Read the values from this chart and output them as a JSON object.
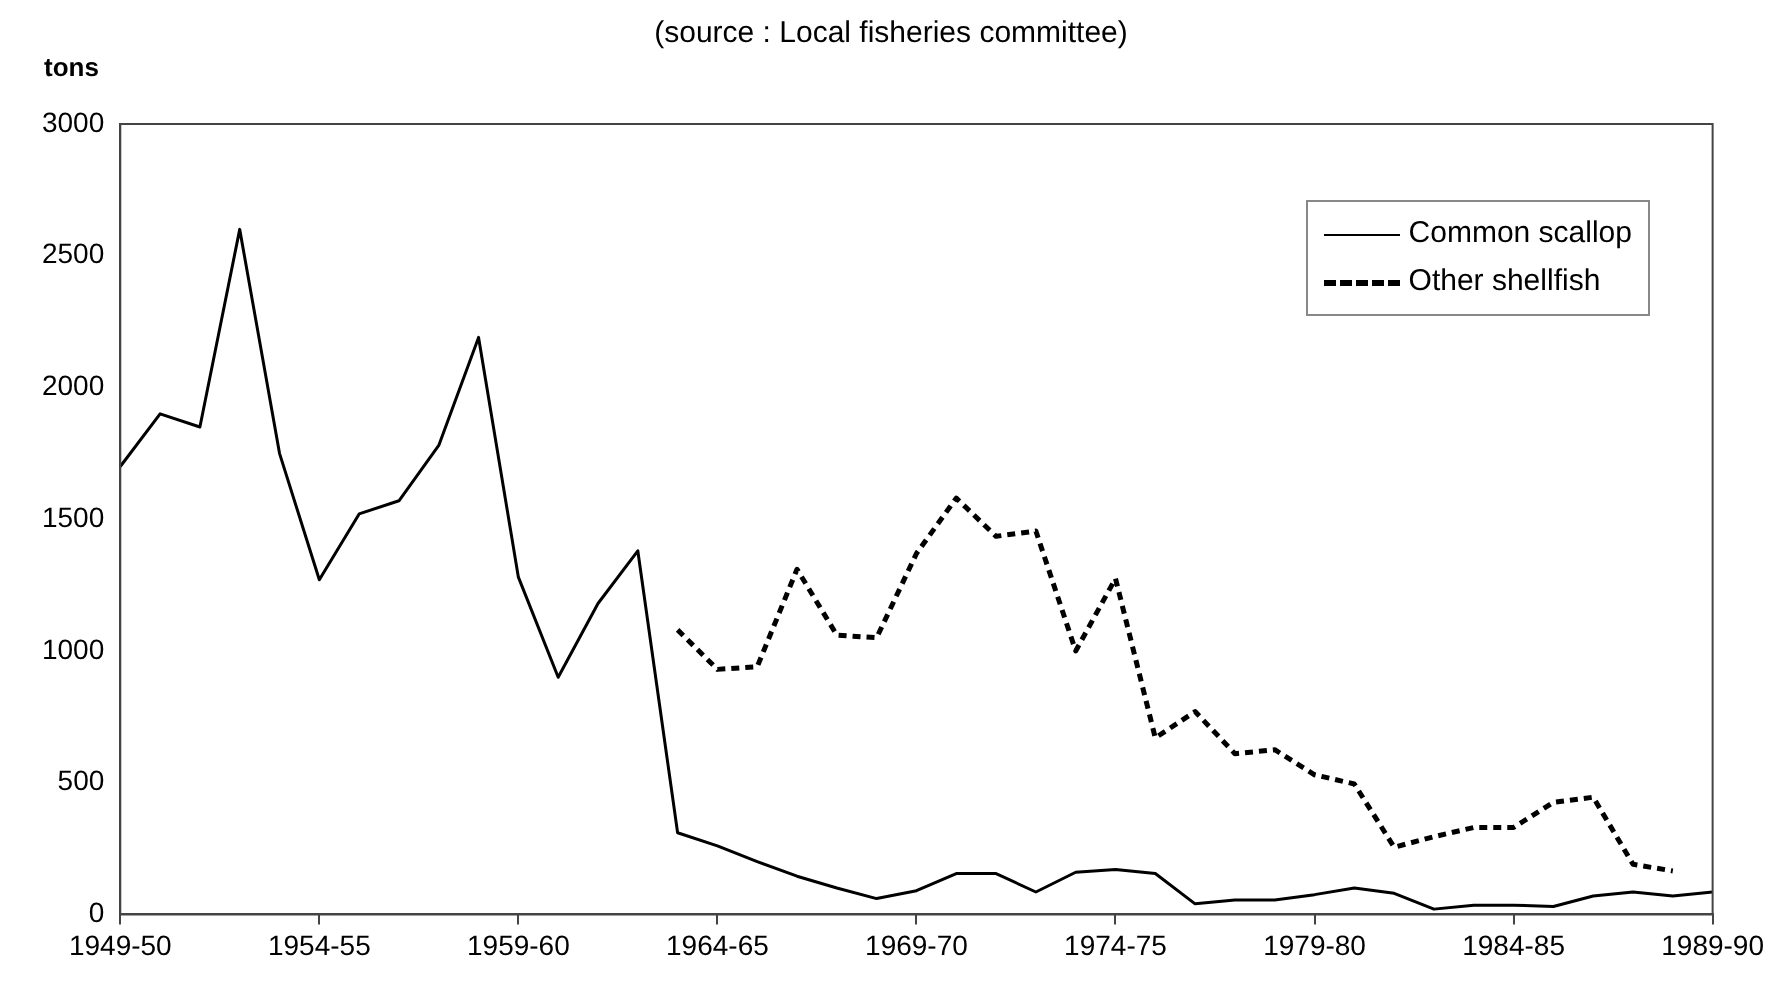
{
  "chart_data": {
    "type": "line",
    "subtitle": "(source : Local fisheries committee)",
    "ylabel": "tons",
    "categories": [
      "1949-50",
      null,
      null,
      null,
      null,
      "1954-55",
      null,
      null,
      null,
      null,
      "1959-60",
      null,
      null,
      null,
      null,
      "1964-65",
      null,
      null,
      null,
      null,
      "1969-70",
      null,
      null,
      null,
      null,
      "1974-75",
      null,
      null,
      null,
      null,
      "1979-80",
      null,
      null,
      null,
      null,
      "1984-85",
      null,
      null,
      null,
      null,
      "1989-90"
    ],
    "series": [
      {
        "name": "Common scallop",
        "color": "#000000",
        "line_style": "solid",
        "values": [
          1700,
          1900,
          1850,
          2600,
          1750,
          1270,
          1520,
          1570,
          1780,
          2190,
          1280,
          900,
          1180,
          1380,
          310,
          260,
          200,
          145,
          100,
          60,
          90,
          155,
          155,
          85,
          160,
          170,
          155,
          40,
          55,
          55,
          75,
          100,
          80,
          20,
          35,
          35,
          30,
          70,
          85,
          70,
          85
        ]
      },
      {
        "name": "Other shellfish",
        "color": "#000000",
        "line_style": "dashed",
        "values": [
          null,
          null,
          null,
          null,
          null,
          null,
          null,
          null,
          null,
          null,
          null,
          null,
          null,
          null,
          1080,
          930,
          940,
          1310,
          1060,
          1050,
          1370,
          1580,
          1435,
          1455,
          1000,
          1275,
          670,
          770,
          610,
          625,
          530,
          495,
          255,
          295,
          330,
          330,
          425,
          445,
          190,
          165,
          null
        ]
      }
    ],
    "ylim": [
      0,
      3000
    ],
    "yticks": [
      0,
      500,
      1000,
      1500,
      2000,
      2500,
      3000
    ],
    "grid": false,
    "legend": "top right",
    "marker": "none"
  }
}
